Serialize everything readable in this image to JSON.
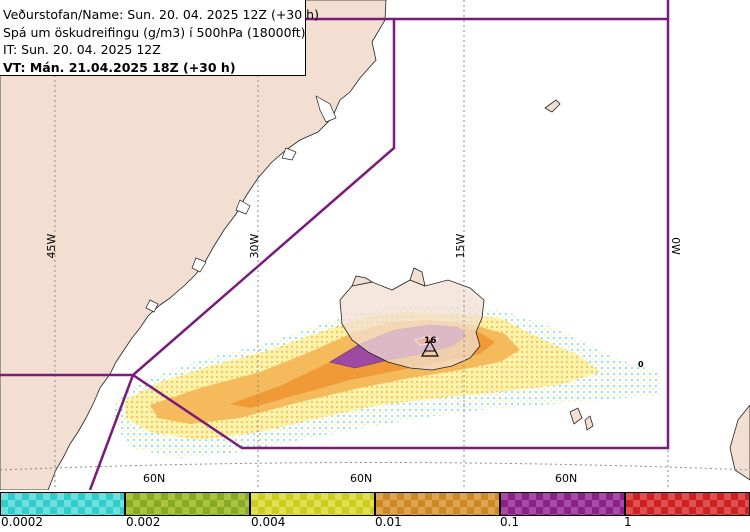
{
  "header": {
    "line1": "Veðurstofan/Name: Sun. 20. 04. 2025 12Z (+30 h)",
    "line2": "Spá um öskudreifingu (g/m3) í 500hPa (18000ft)",
    "line3": "IT: Sun. 20. 04. 2025 12Z",
    "line4": "VT: Mán. 21.04.2025 18Z (+30 h)"
  },
  "map": {
    "longitude_labels": [
      "45W",
      "30W",
      "15W",
      "0W"
    ],
    "latitude_labels": [
      "60N",
      "60N",
      "60N"
    ],
    "source_value_label": "16",
    "small_label": "0"
  },
  "legend": {
    "labels": [
      "0.0002",
      "0.002",
      "0.004",
      "0.01",
      "0.1",
      "1"
    ],
    "colors": [
      "#33cccc",
      "#88aa22",
      "#cccc22",
      "#cc8822",
      "#882288",
      "#cc2222"
    ]
  },
  "colors": {
    "land": "#f2dfd1",
    "sea": "#ffffff",
    "domain_border": "#7a1a7a",
    "ash_low": "#b8f0f0",
    "ash_0002": "#f7f29a",
    "ash_0004": "#f5b84e",
    "ash_001": "#ee9830",
    "ash_01": "#9a4a9e",
    "ash_1": "#e03030"
  }
}
